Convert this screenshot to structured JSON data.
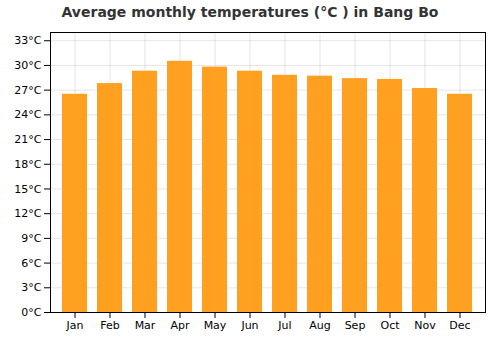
{
  "chart_data": {
    "type": "bar",
    "title": "Average monthly temperatures (°C ) in Bang Bo",
    "categories": [
      "Jan",
      "Feb",
      "Mar",
      "Apr",
      "May",
      "Jun",
      "Jul",
      "Aug",
      "Sep",
      "Oct",
      "Nov",
      "Dec"
    ],
    "values": [
      26.5,
      27.8,
      29.3,
      30.5,
      29.8,
      29.3,
      28.8,
      28.7,
      28.4,
      28.3,
      27.2,
      26.5
    ],
    "color": "#FFA020",
    "ylim": [
      0,
      34
    ],
    "yticks": [
      {
        "value": 0,
        "label": "0°C"
      },
      {
        "value": 3,
        "label": "3°C"
      },
      {
        "value": 6,
        "label": "6°C"
      },
      {
        "value": 9,
        "label": "9°C"
      },
      {
        "value": 12,
        "label": "12°C"
      },
      {
        "value": 15,
        "label": "15°C"
      },
      {
        "value": 18,
        "label": "18°C"
      },
      {
        "value": 21,
        "label": "21°C"
      },
      {
        "value": 24,
        "label": "24°C"
      },
      {
        "value": 27,
        "label": "27°C"
      },
      {
        "value": 30,
        "label": "30°C"
      },
      {
        "value": 33,
        "label": "33°C"
      }
    ],
    "grid": true
  }
}
